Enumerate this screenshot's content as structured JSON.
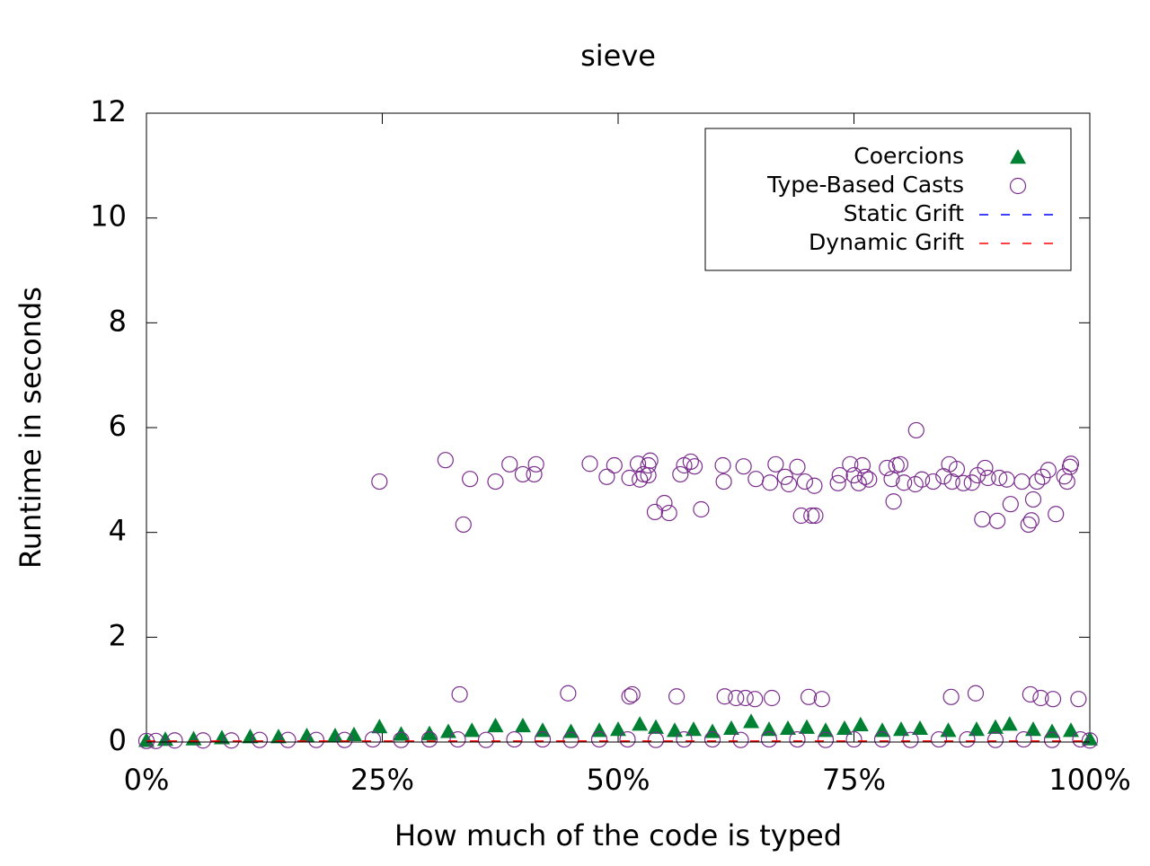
{
  "chart_data": {
    "type": "scatter",
    "title": "sieve",
    "x_label": "How much of the code is typed",
    "y_label": "Runtime in seconds",
    "xlim": [
      0,
      100
    ],
    "ylim": [
      0,
      12
    ],
    "xticks": [
      {
        "value": 0,
        "label": "0%"
      },
      {
        "value": 25,
        "label": "25%"
      },
      {
        "value": 50,
        "label": "50%"
      },
      {
        "value": 75,
        "label": "75%"
      },
      {
        "value": 100,
        "label": "100%"
      }
    ],
    "yticks": [
      0,
      2,
      4,
      6,
      8,
      10,
      12
    ],
    "legend": "top-right",
    "series": [
      {
        "name": "Coercions",
        "color": "#008032",
        "marker": "triangle",
        "x": [
          0,
          2,
          5,
          8,
          11,
          14,
          17,
          20,
          22,
          24.7,
          27,
          30,
          32,
          34.5,
          37,
          39.9,
          42,
          45,
          48,
          50,
          52.3,
          54,
          56,
          58,
          60,
          62,
          64.1,
          66,
          68,
          70,
          72,
          74,
          75.7,
          78,
          80,
          82,
          85,
          88,
          90,
          91.5,
          94,
          96,
          98,
          100
        ],
        "values": [
          0.03,
          0.05,
          0.06,
          0.08,
          0.1,
          0.1,
          0.12,
          0.12,
          0.14,
          0.29,
          0.15,
          0.16,
          0.2,
          0.22,
          0.31,
          0.31,
          0.22,
          0.2,
          0.22,
          0.24,
          0.34,
          0.28,
          0.22,
          0.24,
          0.2,
          0.26,
          0.39,
          0.24,
          0.26,
          0.28,
          0.22,
          0.26,
          0.33,
          0.22,
          0.24,
          0.26,
          0.22,
          0.24,
          0.28,
          0.34,
          0.24,
          0.2,
          0.22,
          0.06
        ]
      },
      {
        "name": "Type-Based Casts",
        "color": "#7b2d8e",
        "marker": "circle",
        "x": [
          24.7,
          31.7,
          33.6,
          34.3,
          37.0,
          38.5,
          39.9,
          41.1,
          41.3,
          47.0,
          48.8,
          49.6,
          51.2,
          52.1,
          52.3,
          52.7,
          53.2,
          53.4,
          53.2,
          53.9,
          54.9,
          55.4,
          56.6,
          57.0,
          57.7,
          58.1,
          58.8,
          61.1,
          61.2,
          63.3,
          64.6,
          66.1,
          66.7,
          67.7,
          68.1,
          69.0,
          69.4,
          69.8,
          70.5,
          70.9,
          70.8,
          73.3,
          73.5,
          74.6,
          75.0,
          75.5,
          75.9,
          76.2,
          76.6,
          78.5,
          79.0,
          79.2,
          79.5,
          79.9,
          80.3,
          81.6,
          81.5,
          82.2,
          83.4,
          84.5,
          85.1,
          85.4,
          85.9,
          86.6,
          87.5,
          88.1,
          88.6,
          88.9,
          89.2,
          90.2,
          90.4,
          91.2,
          91.6,
          92.8,
          93.5,
          93.8,
          94.0,
          94.4,
          95.0,
          95.6,
          96.4,
          97.3,
          97.6,
          97.9,
          98.0,
          33.2,
          44.7,
          51.2,
          51.5,
          56.2,
          61.3,
          62.5,
          63.5,
          64.5,
          66.3,
          70.2,
          71.6,
          85.3,
          87.9,
          93.7,
          94.8,
          96.1,
          98.8,
          0,
          1,
          3,
          6,
          9,
          12,
          15,
          18,
          21,
          24,
          27,
          30,
          33,
          36,
          39,
          42,
          45,
          48,
          51,
          54,
          57,
          60,
          63,
          66,
          69,
          72,
          75,
          78,
          81,
          84,
          87,
          90,
          93,
          96,
          99,
          100
        ],
        "values": [
          4.97,
          5.38,
          4.15,
          5.02,
          4.97,
          5.3,
          5.11,
          5.11,
          5.3,
          5.31,
          5.06,
          5.28,
          5.04,
          5.31,
          5.01,
          5.11,
          5.28,
          5.37,
          5.09,
          4.39,
          4.56,
          4.37,
          5.11,
          5.28,
          5.35,
          5.26,
          4.44,
          5.28,
          4.97,
          5.26,
          5.02,
          4.95,
          5.3,
          5.06,
          4.92,
          5.25,
          4.32,
          4.97,
          4.32,
          4.32,
          4.89,
          4.94,
          5.09,
          5.3,
          5.09,
          4.94,
          5.28,
          5.06,
          5.01,
          5.23,
          5.02,
          4.59,
          5.28,
          5.3,
          4.95,
          5.95,
          4.92,
          5.01,
          4.97,
          5.07,
          5.3,
          4.97,
          5.21,
          4.94,
          4.95,
          5.09,
          4.25,
          5.23,
          5.04,
          4.22,
          5.04,
          5.01,
          4.54,
          4.97,
          4.15,
          4.23,
          4.63,
          4.97,
          5.06,
          5.19,
          4.35,
          5.07,
          4.97,
          5.25,
          5.31,
          0.91,
          0.93,
          0.87,
          0.91,
          0.87,
          0.87,
          0.84,
          0.84,
          0.82,
          0.84,
          0.86,
          0.82,
          0.86,
          0.93,
          0.91,
          0.84,
          0.82,
          0.82,
          0.02,
          0.02,
          0.03,
          0.03,
          0.03,
          0.04,
          0.04,
          0.04,
          0.04,
          0.05,
          0.04,
          0.05,
          0.05,
          0.04,
          0.05,
          0.05,
          0.04,
          0.05,
          0.05,
          0.04,
          0.05,
          0.05,
          0.04,
          0.05,
          0.05,
          0.04,
          0.05,
          0.05,
          0.04,
          0.05,
          0.05,
          0.04,
          0.05,
          0.04,
          0.05,
          0.03
        ]
      },
      {
        "name": "Static Grift",
        "color": "#0000ff",
        "marker": "dashed-line",
        "x": [
          0,
          100
        ],
        "values": [
          0.01,
          0.01
        ]
      },
      {
        "name": "Dynamic Grift",
        "color": "#ff0000",
        "marker": "dashed-line",
        "x": [
          0,
          100
        ],
        "values": [
          0.02,
          0.02
        ]
      }
    ]
  }
}
